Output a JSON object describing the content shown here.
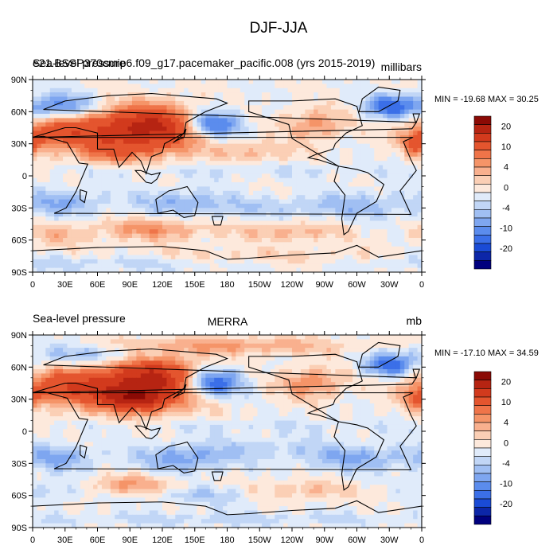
{
  "figure": {
    "title": "DJF-JJA"
  },
  "chart_data": [
    {
      "type": "heatmap",
      "title": "e21.BSSP370cmip6.f09_g17.pacemaker_pacific.008 (yrs 2015-2019)",
      "left_label": "Sea-level pressure",
      "center_label": "",
      "units": "millibars",
      "min_max_text": "MIN = -19.68 MAX =  30.25",
      "x_ticks": [
        "0",
        "30E",
        "60E",
        "90E",
        "120E",
        "150E",
        "180",
        "150W",
        "120W",
        "90W",
        "60W",
        "30W",
        "0"
      ],
      "y_ticks": [
        "90N",
        "60N",
        "30N",
        "0",
        "30S",
        "60S",
        "90S"
      ],
      "xlim": [
        0,
        360
      ],
      "ylim": [
        -90,
        90
      ],
      "colorbar": {
        "labels": [
          "20",
          "10",
          "4",
          "0",
          "-4",
          "-10",
          "-20"
        ],
        "levels": [
          -30,
          -25,
          -20,
          -15,
          -10,
          -8,
          -6,
          -4,
          -2,
          0,
          2,
          4,
          6,
          8,
          10,
          15,
          20,
          25,
          30
        ],
        "colors": [
          "#00007e",
          "#0c26a8",
          "#1a4bd6",
          "#3b6fe8",
          "#5b8ced",
          "#7ea6f0",
          "#a0bff3",
          "#c1d6f6",
          "#e0ebfa",
          "#fde9dc",
          "#fbcfb5",
          "#f9b08e",
          "#f59468",
          "#ef7449",
          "#e4552e",
          "#d23a1d",
          "#b62412",
          "#8b0a05"
        ]
      },
      "anomalies": [
        {
          "lon": 100,
          "lat": 42,
          "w": 60,
          "h": 22,
          "v": 18
        },
        {
          "lon": 115,
          "lat": 50,
          "w": 40,
          "h": 16,
          "v": 6
        },
        {
          "lon": 20,
          "lat": 40,
          "w": 35,
          "h": 15,
          "v": 10
        },
        {
          "lon": 70,
          "lat": 20,
          "w": 30,
          "h": 10,
          "v": 5
        },
        {
          "lon": 165,
          "lat": 48,
          "w": 28,
          "h": 14,
          "v": -15
        },
        {
          "lon": 25,
          "lat": 65,
          "w": 35,
          "h": 12,
          "v": -10
        },
        {
          "lon": 330,
          "lat": 65,
          "w": 22,
          "h": 10,
          "v": -12
        },
        {
          "lon": 262,
          "lat": 48,
          "w": 28,
          "h": 14,
          "v": 7
        },
        {
          "lon": 355,
          "lat": 30,
          "w": 12,
          "h": 10,
          "v": 10
        },
        {
          "lon": 210,
          "lat": 22,
          "w": 40,
          "h": 10,
          "v": 4
        },
        {
          "lon": 140,
          "lat": -25,
          "w": 45,
          "h": 12,
          "v": -6
        },
        {
          "lon": 30,
          "lat": -25,
          "w": 35,
          "h": 12,
          "v": -6
        },
        {
          "lon": 300,
          "lat": -28,
          "w": 50,
          "h": 12,
          "v": -5
        },
        {
          "lon": 220,
          "lat": -30,
          "w": 45,
          "h": 10,
          "v": -3
        },
        {
          "lon": 110,
          "lat": -50,
          "w": 50,
          "h": 10,
          "v": 7
        },
        {
          "lon": 240,
          "lat": -52,
          "w": 50,
          "h": 9,
          "v": 5
        },
        {
          "lon": 20,
          "lat": -55,
          "w": 30,
          "h": 10,
          "v": 4
        },
        {
          "lon": 180,
          "lat": -75,
          "w": 200,
          "h": 8,
          "v": 3
        },
        {
          "lon": 60,
          "lat": -80,
          "w": 120,
          "h": 8,
          "v": -4
        },
        {
          "lon": 180,
          "lat": 5,
          "w": 200,
          "h": 7,
          "v": -2
        }
      ]
    },
    {
      "type": "heatmap",
      "title": "",
      "left_label": "Sea-level pressure",
      "center_label": "MERRA",
      "units": "mb",
      "min_max_text": "MIN = -17.10 MAX =  34.59",
      "x_ticks": [
        "0",
        "30E",
        "60E",
        "90E",
        "120E",
        "150E",
        "180",
        "150W",
        "120W",
        "90W",
        "60W",
        "30W",
        "0"
      ],
      "y_ticks": [
        "90N",
        "60N",
        "30N",
        "0",
        "30S",
        "60S",
        "90S"
      ],
      "xlim": [
        0,
        360
      ],
      "ylim": [
        -90,
        90
      ],
      "colorbar": {
        "labels": [
          "20",
          "10",
          "4",
          "0",
          "-4",
          "-10",
          "-20"
        ],
        "levels": [
          -30,
          -25,
          -20,
          -15,
          -10,
          -8,
          -6,
          -4,
          -2,
          0,
          2,
          4,
          6,
          8,
          10,
          15,
          20,
          25,
          30
        ],
        "colors": [
          "#00007e",
          "#0c26a8",
          "#1a4bd6",
          "#3b6fe8",
          "#5b8ced",
          "#7ea6f0",
          "#a0bff3",
          "#c1d6f6",
          "#e0ebfa",
          "#fde9dc",
          "#fbcfb5",
          "#f9b08e",
          "#f59468",
          "#ef7449",
          "#e4552e",
          "#d23a1d",
          "#b62412",
          "#8b0a05"
        ]
      },
      "anomalies": [
        {
          "lon": 95,
          "lat": 40,
          "w": 60,
          "h": 22,
          "v": 20
        },
        {
          "lon": 95,
          "lat": 30,
          "w": 25,
          "h": 8,
          "v": 10
        },
        {
          "lon": 120,
          "lat": 55,
          "w": 40,
          "h": 16,
          "v": 8
        },
        {
          "lon": 20,
          "lat": 42,
          "w": 35,
          "h": 15,
          "v": 9
        },
        {
          "lon": 165,
          "lat": 45,
          "w": 28,
          "h": 14,
          "v": -16
        },
        {
          "lon": 50,
          "lat": 72,
          "w": 60,
          "h": 10,
          "v": -6
        },
        {
          "lon": 330,
          "lat": 62,
          "w": 22,
          "h": 10,
          "v": -12
        },
        {
          "lon": 258,
          "lat": 45,
          "w": 28,
          "h": 14,
          "v": 8
        },
        {
          "lon": 180,
          "lat": 80,
          "w": 120,
          "h": 8,
          "v": 6
        },
        {
          "lon": 355,
          "lat": 30,
          "w": 12,
          "h": 10,
          "v": 8
        },
        {
          "lon": 140,
          "lat": -25,
          "w": 45,
          "h": 12,
          "v": -7
        },
        {
          "lon": 25,
          "lat": -25,
          "w": 35,
          "h": 12,
          "v": -6
        },
        {
          "lon": 300,
          "lat": -25,
          "w": 50,
          "h": 12,
          "v": -6
        },
        {
          "lon": 215,
          "lat": -15,
          "w": 60,
          "h": 10,
          "v": -3
        },
        {
          "lon": 90,
          "lat": -50,
          "w": 40,
          "h": 9,
          "v": 6
        },
        {
          "lon": 250,
          "lat": -55,
          "w": 50,
          "h": 9,
          "v": 4
        },
        {
          "lon": 20,
          "lat": -55,
          "w": 30,
          "h": 10,
          "v": -3
        },
        {
          "lon": 160,
          "lat": -60,
          "w": 45,
          "h": 8,
          "v": -4
        },
        {
          "lon": 180,
          "lat": -82,
          "w": 200,
          "h": 6,
          "v": -3
        },
        {
          "lon": 180,
          "lat": 5,
          "w": 200,
          "h": 7,
          "v": -2
        }
      ]
    }
  ]
}
